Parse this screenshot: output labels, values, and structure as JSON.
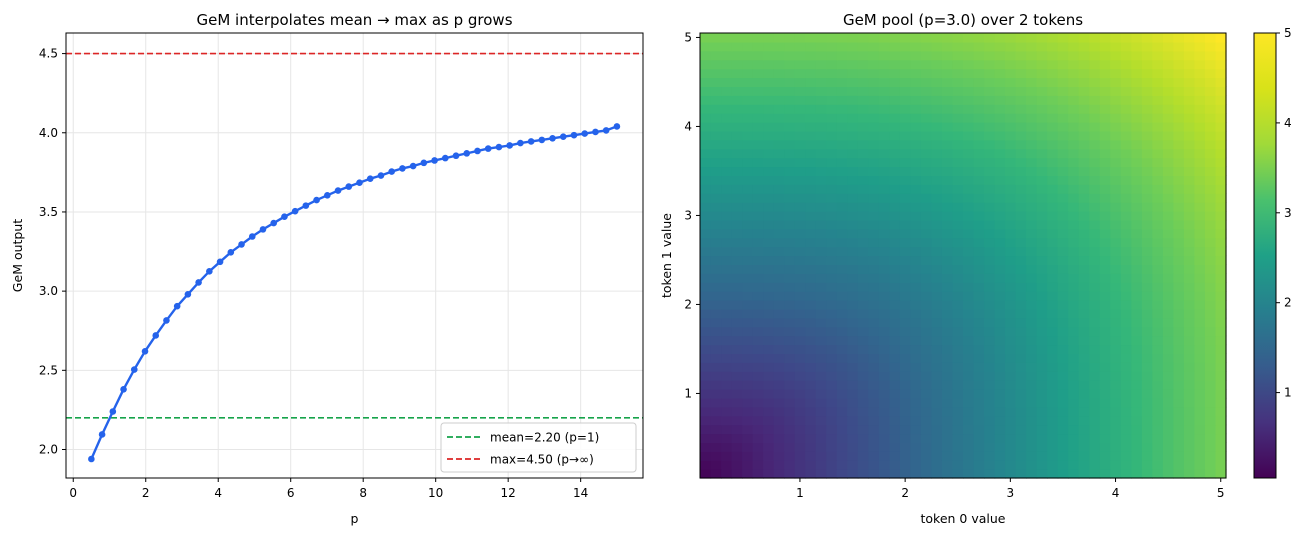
{
  "chart_data": [
    {
      "type": "line",
      "title": "GeM interpolates mean → max as p grows",
      "xlabel": "p",
      "ylabel": "GeM output",
      "xlim": [
        -0.2,
        15.72
      ],
      "ylim": [
        1.82,
        4.63
      ],
      "xticks": [
        0,
        2,
        4,
        6,
        8,
        10,
        12,
        14
      ],
      "yticks": [
        2.0,
        2.5,
        3.0,
        3.5,
        4.0,
        4.5
      ],
      "ytick_labels": [
        "2.0",
        "2.5",
        "3.0",
        "3.5",
        "4.0",
        "4.5"
      ],
      "grid": true,
      "legend_position": "lower-right",
      "series": [
        {
          "color": "#2563eb",
          "marker": "circle",
          "points": [
            [
              0.5,
              1.94
            ],
            [
              0.796,
              2.095
            ],
            [
              1.092,
              2.24
            ],
            [
              1.388,
              2.38
            ],
            [
              1.684,
              2.505
            ],
            [
              1.98,
              2.62
            ],
            [
              2.276,
              2.72
            ],
            [
              2.571,
              2.815
            ],
            [
              2.867,
              2.905
            ],
            [
              3.163,
              2.98
            ],
            [
              3.459,
              3.055
            ],
            [
              3.755,
              3.125
            ],
            [
              4.051,
              3.185
            ],
            [
              4.347,
              3.245
            ],
            [
              4.643,
              3.295
            ],
            [
              4.939,
              3.345
            ],
            [
              5.235,
              3.39
            ],
            [
              5.531,
              3.43
            ],
            [
              5.827,
              3.47
            ],
            [
              6.122,
              3.505
            ],
            [
              6.418,
              3.54
            ],
            [
              6.714,
              3.575
            ],
            [
              7.01,
              3.605
            ],
            [
              7.306,
              3.635
            ],
            [
              7.602,
              3.66
            ],
            [
              7.898,
              3.685
            ],
            [
              8.194,
              3.71
            ],
            [
              8.49,
              3.73
            ],
            [
              8.786,
              3.755
            ],
            [
              9.082,
              3.775
            ],
            [
              9.378,
              3.79
            ],
            [
              9.673,
              3.81
            ],
            [
              9.969,
              3.825
            ],
            [
              10.265,
              3.84
            ],
            [
              10.561,
              3.855
            ],
            [
              10.857,
              3.87
            ],
            [
              11.153,
              3.885
            ],
            [
              11.449,
              3.9
            ],
            [
              11.745,
              3.91
            ],
            [
              12.041,
              3.92
            ],
            [
              12.337,
              3.935
            ],
            [
              12.633,
              3.945
            ],
            [
              12.929,
              3.955
            ],
            [
              13.224,
              3.965
            ],
            [
              13.52,
              3.975
            ],
            [
              13.816,
              3.985
            ],
            [
              14.112,
              3.995
            ],
            [
              14.408,
              4.005
            ],
            [
              14.704,
              4.015
            ],
            [
              15.0,
              4.04
            ]
          ]
        }
      ],
      "hlines": [
        {
          "y": 2.2,
          "color": "#16a34a",
          "label": "mean=2.20 (p=1)"
        },
        {
          "y": 4.5,
          "color": "#dc2626",
          "label": "max=4.50 (p→∞)"
        }
      ]
    },
    {
      "type": "heatmap",
      "title": "GeM pool (p=3.0) over 2 tokens",
      "xlabel": "token 0 value",
      "ylabel": "token 1 value",
      "xlim": [
        0.05,
        5.05
      ],
      "ylim": [
        0.05,
        5.05
      ],
      "xticks": [
        1,
        2,
        3,
        4,
        5
      ],
      "yticks": [
        1,
        2,
        3,
        4,
        5
      ],
      "grid_points": 50,
      "p": 3.0,
      "colormap": "viridis",
      "colorbar": {
        "range": [
          0.05,
          5.0
        ],
        "ticks": [
          1,
          2,
          3,
          4,
          5
        ]
      }
    }
  ]
}
